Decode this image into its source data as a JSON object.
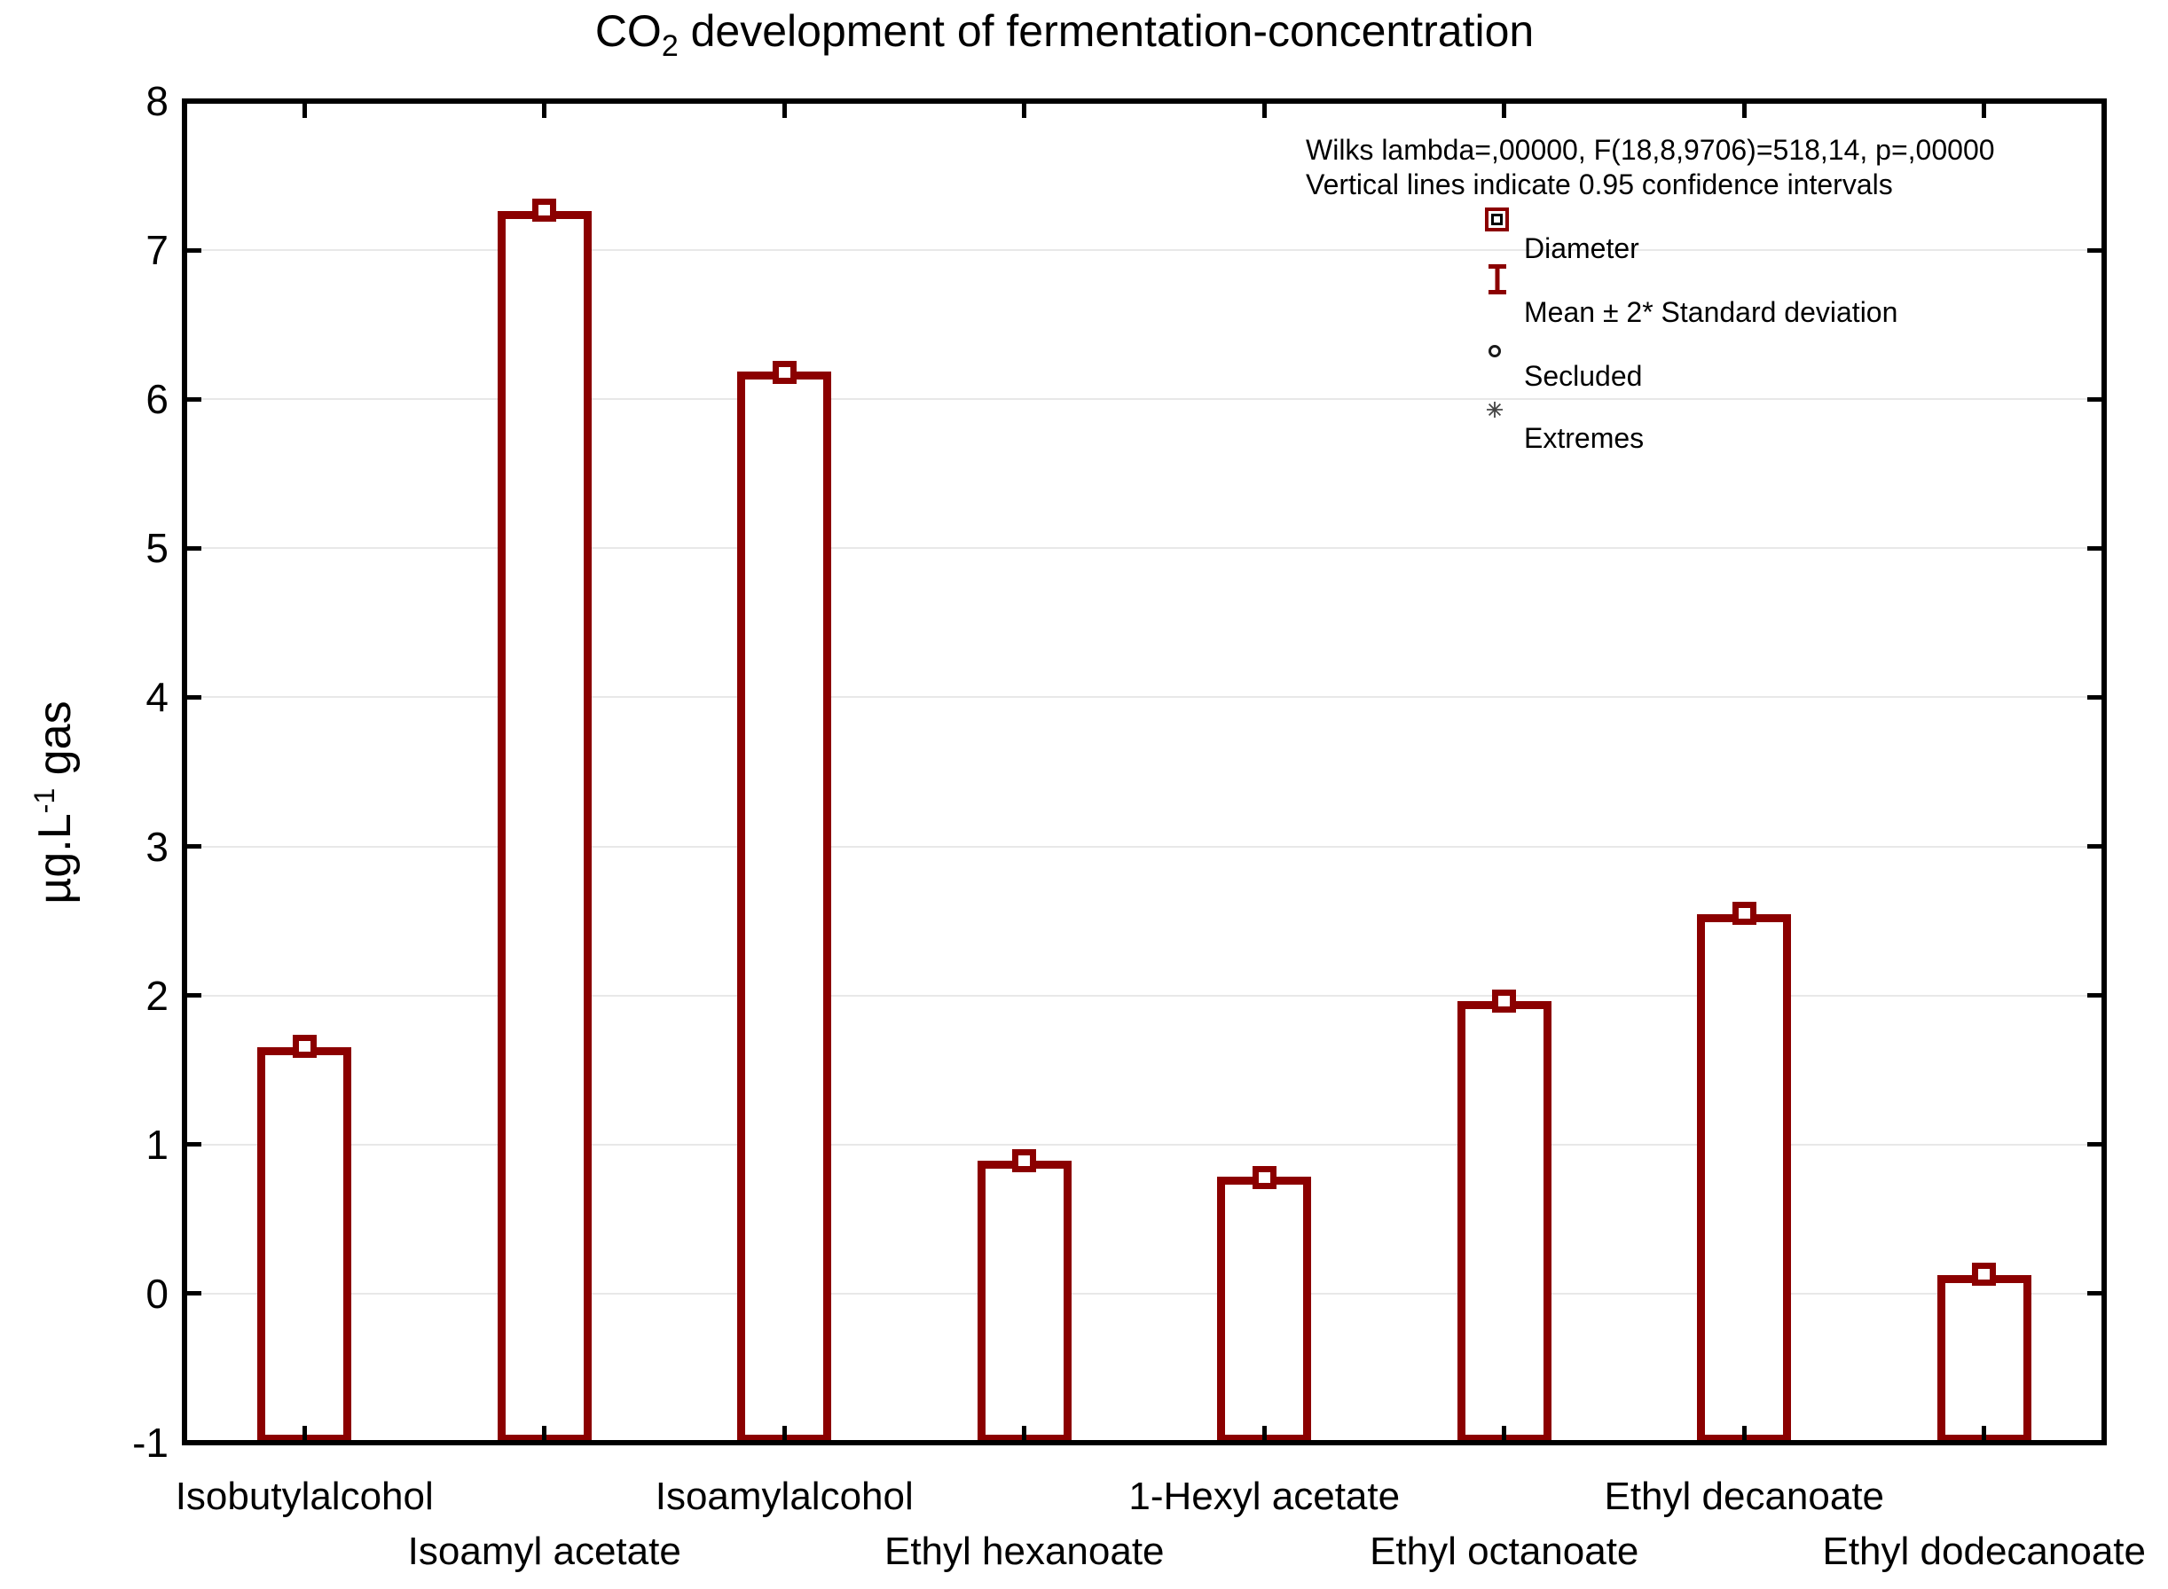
{
  "title": {
    "pre": "CO",
    "sub": "2",
    "post": " development of fermentation-concentration"
  },
  "y_axis_title": {
    "pre": "µg.L",
    "sup": "-1",
    "post": " gas"
  },
  "annotation": {
    "line1": "Wilks lambda=,00000, F(18,8,9706)=518,14, p=,00000",
    "line2": "Vertical lines indicate 0.95 confidence intervals"
  },
  "legend": {
    "items": [
      {
        "symbol": "diameter-square",
        "label": "Diameter"
      },
      {
        "symbol": "mean-error-bar",
        "label": "Mean ± 2* Standard deviation"
      },
      {
        "symbol": "secluded-circle",
        "label": "Secluded"
      },
      {
        "symbol": "extremes-asterisk",
        "label": "Extremes"
      }
    ]
  },
  "colors": {
    "bar_outline": "#8B0000",
    "bar_fill": "#FFFFFF",
    "frame": "#000000",
    "grid": "#E8E8E8",
    "text": "#000000",
    "background": "#FFFFFF"
  },
  "chart_data": {
    "type": "bar",
    "title": "CO2 development of fermentation-concentration",
    "ylabel": "µg.L-1 gas",
    "xlabel": "",
    "categories": [
      "Isobutylalcohol",
      "Isoamyl acetate",
      "Isoamylalcohol",
      "Ethyl hexanoate",
      "1-Hexyl acetate",
      "Ethyl octanoate",
      "Ethyl decanoate",
      "Ethyl dodecanoate"
    ],
    "series": [
      {
        "name": "bar_height",
        "values": [
          1.63,
          7.24,
          6.16,
          0.87,
          0.76,
          1.94,
          2.52,
          0.1
        ]
      },
      {
        "name": "mean_marker",
        "values": [
          1.66,
          7.27,
          6.18,
          0.89,
          0.78,
          1.96,
          2.55,
          0.13
        ]
      }
    ],
    "ylim": [
      -1,
      8
    ],
    "yticks": [
      8,
      7,
      6,
      5,
      4,
      3,
      2,
      1,
      0,
      -1
    ],
    "gridlines_at": [
      7,
      6,
      5,
      4,
      3,
      2,
      1,
      0
    ],
    "grid": "horizontal",
    "bars_baseline": -1,
    "legend_position": "inside-top-right",
    "note": "Vertical lines indicate 0.95 confidence intervals"
  }
}
